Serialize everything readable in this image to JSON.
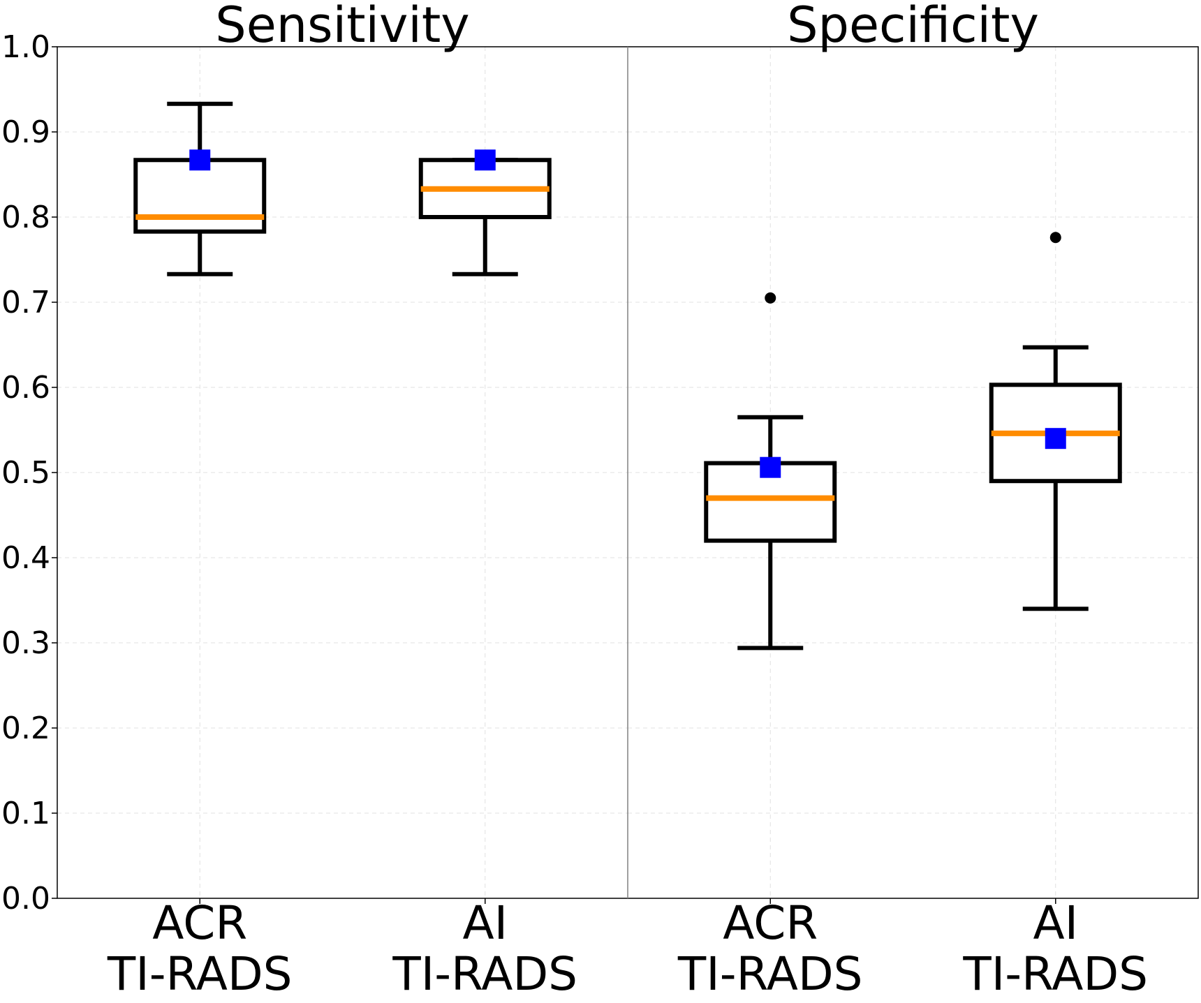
{
  "chart_data": {
    "type": "box",
    "ylim": [
      0.0,
      1.0
    ],
    "yticks": [
      "0.0",
      "0.1",
      "0.2",
      "0.3",
      "0.4",
      "0.5",
      "0.6",
      "0.7",
      "0.8",
      "0.9",
      "1.0"
    ],
    "grid": true,
    "colors": {
      "box": "#000000",
      "median": "#ff8c00",
      "mean_marker": "#0000ff",
      "outlier": "#000000",
      "grid": "#e0e0e0",
      "divider": "#808080"
    },
    "panels": [
      {
        "title": "Sensitivity",
        "boxes": [
          {
            "label_line1": "ACR",
            "label_line2": "TI-RADS",
            "whisker_low": 0.733,
            "q1": 0.783,
            "median": 0.8,
            "q3": 0.867,
            "whisker_high": 0.933,
            "mean": 0.867,
            "outliers": []
          },
          {
            "label_line1": "AI",
            "label_line2": "TI-RADS",
            "whisker_low": 0.733,
            "q1": 0.8,
            "median": 0.833,
            "q3": 0.867,
            "whisker_high": 0.867,
            "mean": 0.867,
            "outliers": []
          }
        ]
      },
      {
        "title": "Specificity",
        "boxes": [
          {
            "label_line1": "ACR",
            "label_line2": "TI-RADS",
            "whisker_low": 0.294,
            "q1": 0.42,
            "median": 0.47,
            "q3": 0.511,
            "whisker_high": 0.565,
            "mean": 0.506,
            "outliers": [
              0.705
            ]
          },
          {
            "label_line1": "AI",
            "label_line2": "TI-RADS",
            "whisker_low": 0.34,
            "q1": 0.49,
            "median": 0.546,
            "q3": 0.603,
            "whisker_high": 0.647,
            "mean": 0.54,
            "outliers": [
              0.776
            ]
          }
        ]
      }
    ]
  }
}
